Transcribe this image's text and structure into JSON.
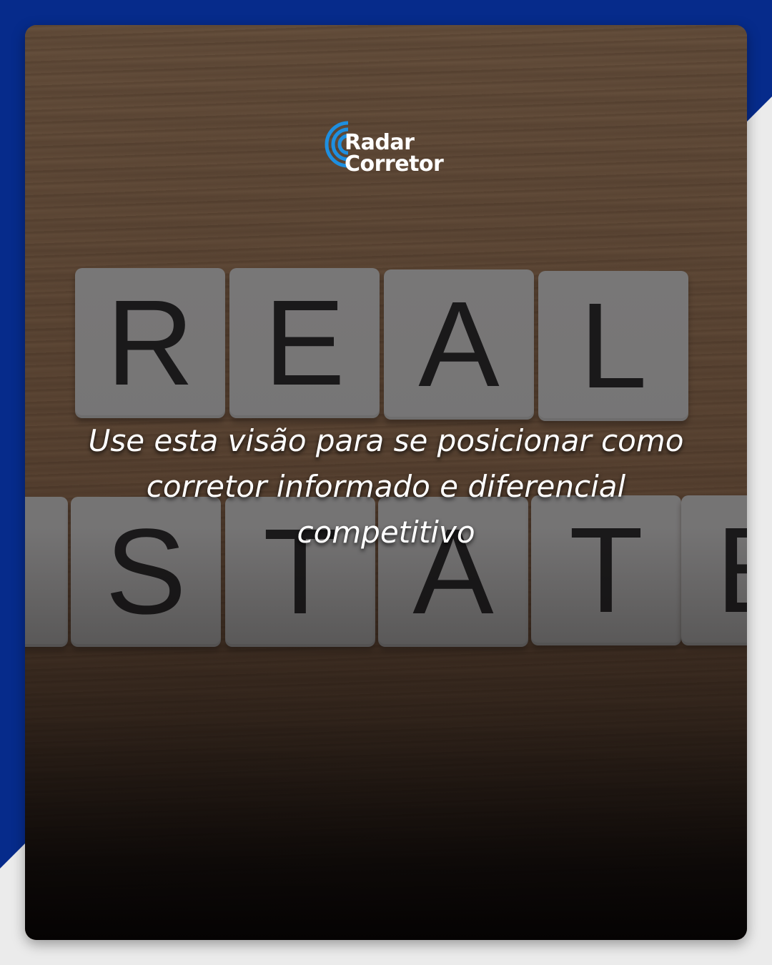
{
  "brand": {
    "line1": "Radar",
    "line2": "Corretor",
    "accent": "#1e8fe0"
  },
  "tiles": {
    "row1": [
      "R",
      "E",
      "A",
      "L"
    ],
    "row2": [
      "S",
      "T",
      "A",
      "T",
      "E"
    ]
  },
  "headline": "Use esta visão para se posicionar como corretor informado e diferencial competitivo",
  "colors": {
    "frame_blue": "#062b8b",
    "background": "#ebebeb"
  }
}
